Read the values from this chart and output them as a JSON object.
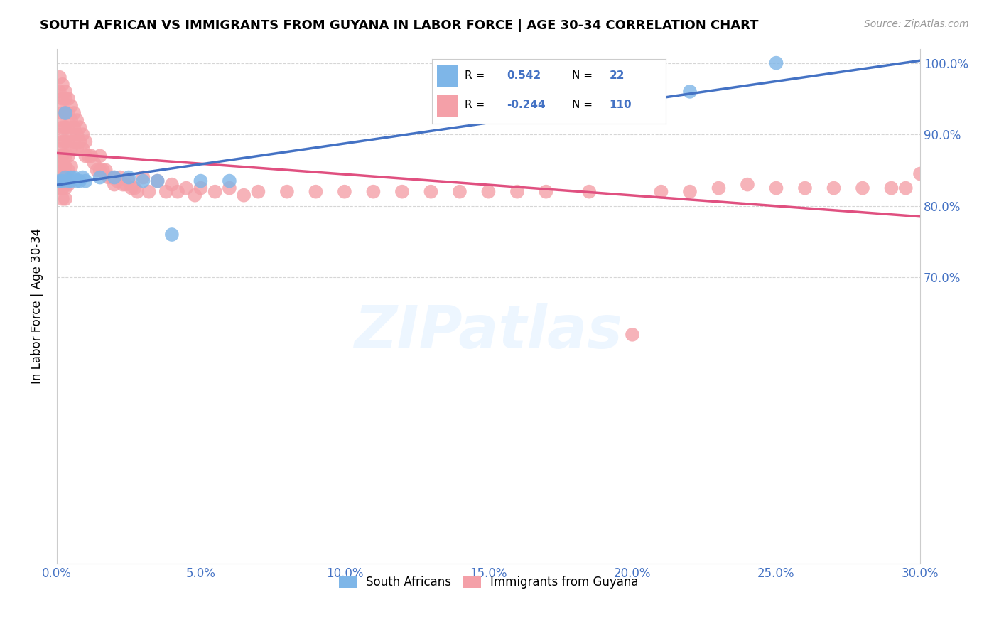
{
  "title": "SOUTH AFRICAN VS IMMIGRANTS FROM GUYANA IN LABOR FORCE | AGE 30-34 CORRELATION CHART",
  "source": "Source: ZipAtlas.com",
  "ylabel": "In Labor Force | Age 30-34",
  "xlim": [
    0.0,
    0.3
  ],
  "ylim": [
    0.3,
    1.02
  ],
  "xticks": [
    0.0,
    0.05,
    0.1,
    0.15,
    0.2,
    0.25,
    0.3
  ],
  "xtick_labels": [
    "0.0%",
    "5.0%",
    "10.0%",
    "15.0%",
    "20.0%",
    "25.0%",
    "30.0%"
  ],
  "yticks": [
    0.7,
    0.8,
    0.9,
    1.0
  ],
  "ytick_labels": [
    "70.0%",
    "80.0%",
    "90.0%",
    "100.0%"
  ],
  "ytick_right_vals": [
    0.7,
    0.8,
    0.9,
    1.0
  ],
  "ytick_right_labels": [
    "70.0%",
    "80.0%",
    "90.0%",
    "100.0%"
  ],
  "blue_R": 0.542,
  "blue_N": 22,
  "pink_R": -0.244,
  "pink_N": 110,
  "blue_color": "#7EB6E8",
  "pink_color": "#F4A0A8",
  "blue_line_color": "#4472C4",
  "pink_line_color": "#E05080",
  "watermark": "ZIPatlas",
  "legend_label_blue": "South Africans",
  "legend_label_pink": "Immigrants from Guyana",
  "blue_x": [
    0.001,
    0.002,
    0.003,
    0.003,
    0.004,
    0.005,
    0.005,
    0.006,
    0.007,
    0.008,
    0.009,
    0.01,
    0.015,
    0.02,
    0.025,
    0.03,
    0.035,
    0.04,
    0.05,
    0.06,
    0.22,
    0.25
  ],
  "blue_y": [
    0.835,
    0.835,
    0.93,
    0.84,
    0.835,
    0.835,
    0.84,
    0.84,
    0.835,
    0.835,
    0.84,
    0.835,
    0.84,
    0.84,
    0.84,
    0.835,
    0.835,
    0.76,
    0.835,
    0.835,
    0.96,
    1.0
  ],
  "pink_x": [
    0.001,
    0.001,
    0.001,
    0.001,
    0.001,
    0.001,
    0.001,
    0.001,
    0.001,
    0.001,
    0.002,
    0.002,
    0.002,
    0.002,
    0.002,
    0.002,
    0.002,
    0.002,
    0.002,
    0.002,
    0.003,
    0.003,
    0.003,
    0.003,
    0.003,
    0.003,
    0.003,
    0.003,
    0.003,
    0.003,
    0.004,
    0.004,
    0.004,
    0.004,
    0.004,
    0.004,
    0.004,
    0.005,
    0.005,
    0.005,
    0.005,
    0.005,
    0.006,
    0.006,
    0.006,
    0.007,
    0.007,
    0.007,
    0.008,
    0.008,
    0.009,
    0.009,
    0.01,
    0.01,
    0.011,
    0.012,
    0.013,
    0.014,
    0.015,
    0.015,
    0.016,
    0.017,
    0.018,
    0.019,
    0.02,
    0.02,
    0.021,
    0.022,
    0.023,
    0.024,
    0.025,
    0.026,
    0.027,
    0.028,
    0.03,
    0.032,
    0.035,
    0.038,
    0.04,
    0.042,
    0.045,
    0.048,
    0.05,
    0.055,
    0.06,
    0.065,
    0.07,
    0.08,
    0.09,
    0.1,
    0.11,
    0.12,
    0.13,
    0.14,
    0.15,
    0.16,
    0.17,
    0.185,
    0.2,
    0.21,
    0.22,
    0.23,
    0.24,
    0.25,
    0.26,
    0.27,
    0.28,
    0.29,
    0.295,
    0.3
  ],
  "pink_y": [
    0.98,
    0.96,
    0.94,
    0.92,
    0.9,
    0.88,
    0.87,
    0.855,
    0.84,
    0.825,
    0.97,
    0.95,
    0.93,
    0.91,
    0.89,
    0.87,
    0.855,
    0.84,
    0.825,
    0.81,
    0.96,
    0.95,
    0.93,
    0.91,
    0.89,
    0.87,
    0.855,
    0.84,
    0.825,
    0.81,
    0.95,
    0.93,
    0.91,
    0.89,
    0.87,
    0.85,
    0.83,
    0.94,
    0.92,
    0.9,
    0.88,
    0.855,
    0.93,
    0.91,
    0.89,
    0.92,
    0.9,
    0.88,
    0.91,
    0.89,
    0.9,
    0.88,
    0.89,
    0.87,
    0.87,
    0.87,
    0.86,
    0.85,
    0.87,
    0.85,
    0.85,
    0.85,
    0.84,
    0.84,
    0.84,
    0.83,
    0.835,
    0.84,
    0.83,
    0.83,
    0.835,
    0.825,
    0.825,
    0.82,
    0.84,
    0.82,
    0.835,
    0.82,
    0.83,
    0.82,
    0.825,
    0.815,
    0.825,
    0.82,
    0.825,
    0.815,
    0.82,
    0.82,
    0.82,
    0.82,
    0.82,
    0.82,
    0.82,
    0.82,
    0.82,
    0.82,
    0.82,
    0.82,
    0.62,
    0.82,
    0.82,
    0.825,
    0.83,
    0.825,
    0.825,
    0.825,
    0.825,
    0.825,
    0.825,
    0.845
  ]
}
